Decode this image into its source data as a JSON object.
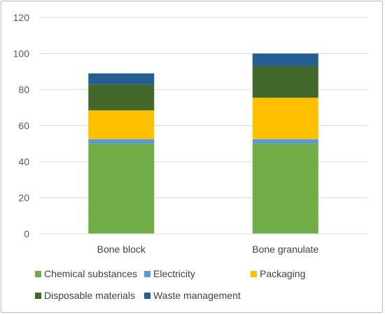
{
  "chart_data": {
    "type": "bar",
    "stacked": true,
    "categories": [
      "Bone block",
      "Bone granulate"
    ],
    "series": [
      {
        "name": "Chemical substances",
        "color": "#70ad47",
        "values": [
          50,
          50
        ]
      },
      {
        "name": "Electricity",
        "color": "#5b9bd5",
        "values": [
          2.5,
          2.5
        ]
      },
      {
        "name": "Packaging",
        "color": "#ffc000",
        "values": [
          16,
          23
        ]
      },
      {
        "name": "Disposable materials",
        "color": "#43682b",
        "values": [
          14.5,
          17.5
        ]
      },
      {
        "name": "Waste management",
        "color": "#255e91",
        "values": [
          6,
          7
        ]
      }
    ],
    "title": "",
    "xlabel": "",
    "ylabel": "",
    "ylim": [
      0,
      120
    ],
    "yticks": [
      0,
      20,
      40,
      60,
      80,
      100,
      120
    ],
    "grid": true,
    "legend_position": "bottom"
  }
}
